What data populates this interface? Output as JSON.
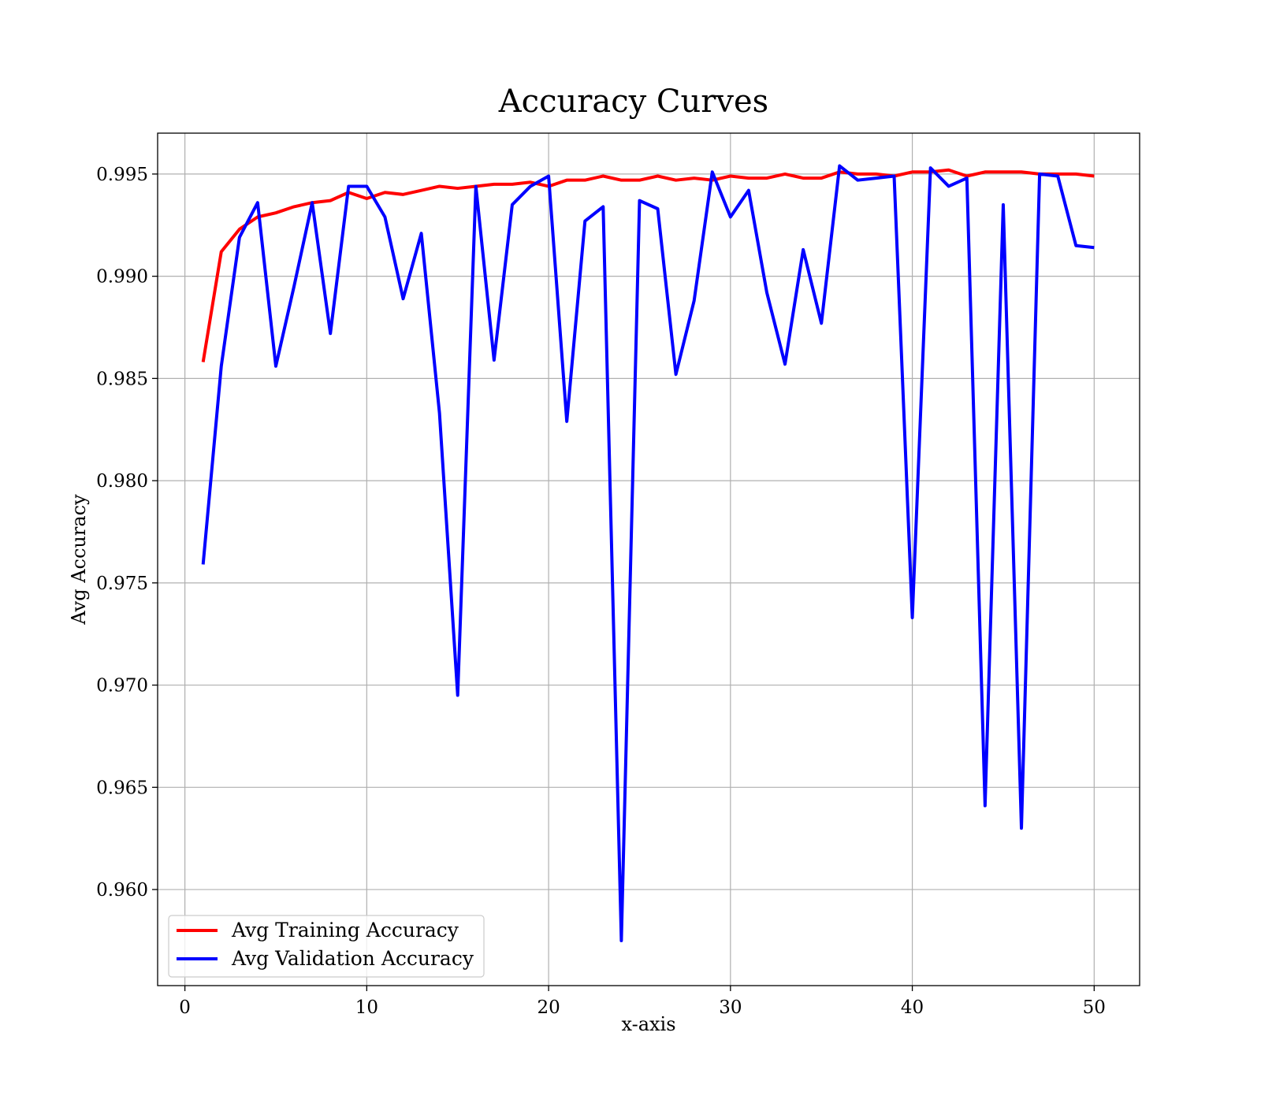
{
  "chart_data": {
    "type": "line",
    "title": "Accuracy Curves",
    "xlabel": "x-axis",
    "ylabel": "Avg Accuracy",
    "xlim": [
      -1.5,
      52.5
    ],
    "ylim": [
      0.9553,
      0.997
    ],
    "xticks": [
      0,
      10,
      20,
      30,
      40,
      50
    ],
    "xtick_labels": [
      "0",
      "10",
      "20",
      "30",
      "40",
      "50"
    ],
    "yticks": [
      0.96,
      0.965,
      0.97,
      0.975,
      0.98,
      0.985,
      0.99,
      0.995
    ],
    "ytick_labels": [
      "0.960",
      "0.965",
      "0.970",
      "0.975",
      "0.980",
      "0.985",
      "0.990",
      "0.995"
    ],
    "grid": true,
    "legend_position": "lower-left",
    "x": [
      1,
      2,
      3,
      4,
      5,
      6,
      7,
      8,
      9,
      10,
      11,
      12,
      13,
      14,
      15,
      16,
      17,
      18,
      19,
      20,
      21,
      22,
      23,
      24,
      25,
      26,
      27,
      28,
      29,
      30,
      31,
      32,
      33,
      34,
      35,
      36,
      37,
      38,
      39,
      40,
      41,
      42,
      43,
      44,
      45,
      46,
      47,
      48,
      49,
      50
    ],
    "series": [
      {
        "name": "Avg Training Accuracy",
        "color": "#ff0000",
        "values": [
          0.9858,
          0.9912,
          0.9923,
          0.9929,
          0.9931,
          0.9934,
          0.9936,
          0.9937,
          0.9941,
          0.9938,
          0.9941,
          0.994,
          0.9942,
          0.9944,
          0.9943,
          0.9944,
          0.9945,
          0.9945,
          0.9946,
          0.9944,
          0.9947,
          0.9947,
          0.9949,
          0.9947,
          0.9947,
          0.9949,
          0.9947,
          0.9948,
          0.9947,
          0.9949,
          0.9948,
          0.9948,
          0.995,
          0.9948,
          0.9948,
          0.9951,
          0.995,
          0.995,
          0.9949,
          0.9951,
          0.9951,
          0.9952,
          0.9949,
          0.9951,
          0.9951,
          0.9951,
          0.995,
          0.995,
          0.995,
          0.9949
        ]
      },
      {
        "name": "Avg Validation Accuracy",
        "color": "#0000ff",
        "values": [
          0.9759,
          0.9856,
          0.9919,
          0.9936,
          0.9856,
          0.9895,
          0.9936,
          0.9872,
          0.9944,
          0.9944,
          0.9929,
          0.9889,
          0.9921,
          0.9833,
          0.9695,
          0.9944,
          0.9859,
          0.9935,
          0.9944,
          0.9949,
          0.9829,
          0.9927,
          0.9934,
          0.9575,
          0.9937,
          0.9933,
          0.9852,
          0.9888,
          0.9951,
          0.9929,
          0.9942,
          0.9892,
          0.9857,
          0.9913,
          0.9877,
          0.9954,
          0.9947,
          0.9948,
          0.9949,
          0.9733,
          0.9953,
          0.9944,
          0.9948,
          0.9641,
          0.9935,
          0.963,
          0.995,
          0.9949,
          0.9915,
          0.9914
        ]
      }
    ]
  }
}
